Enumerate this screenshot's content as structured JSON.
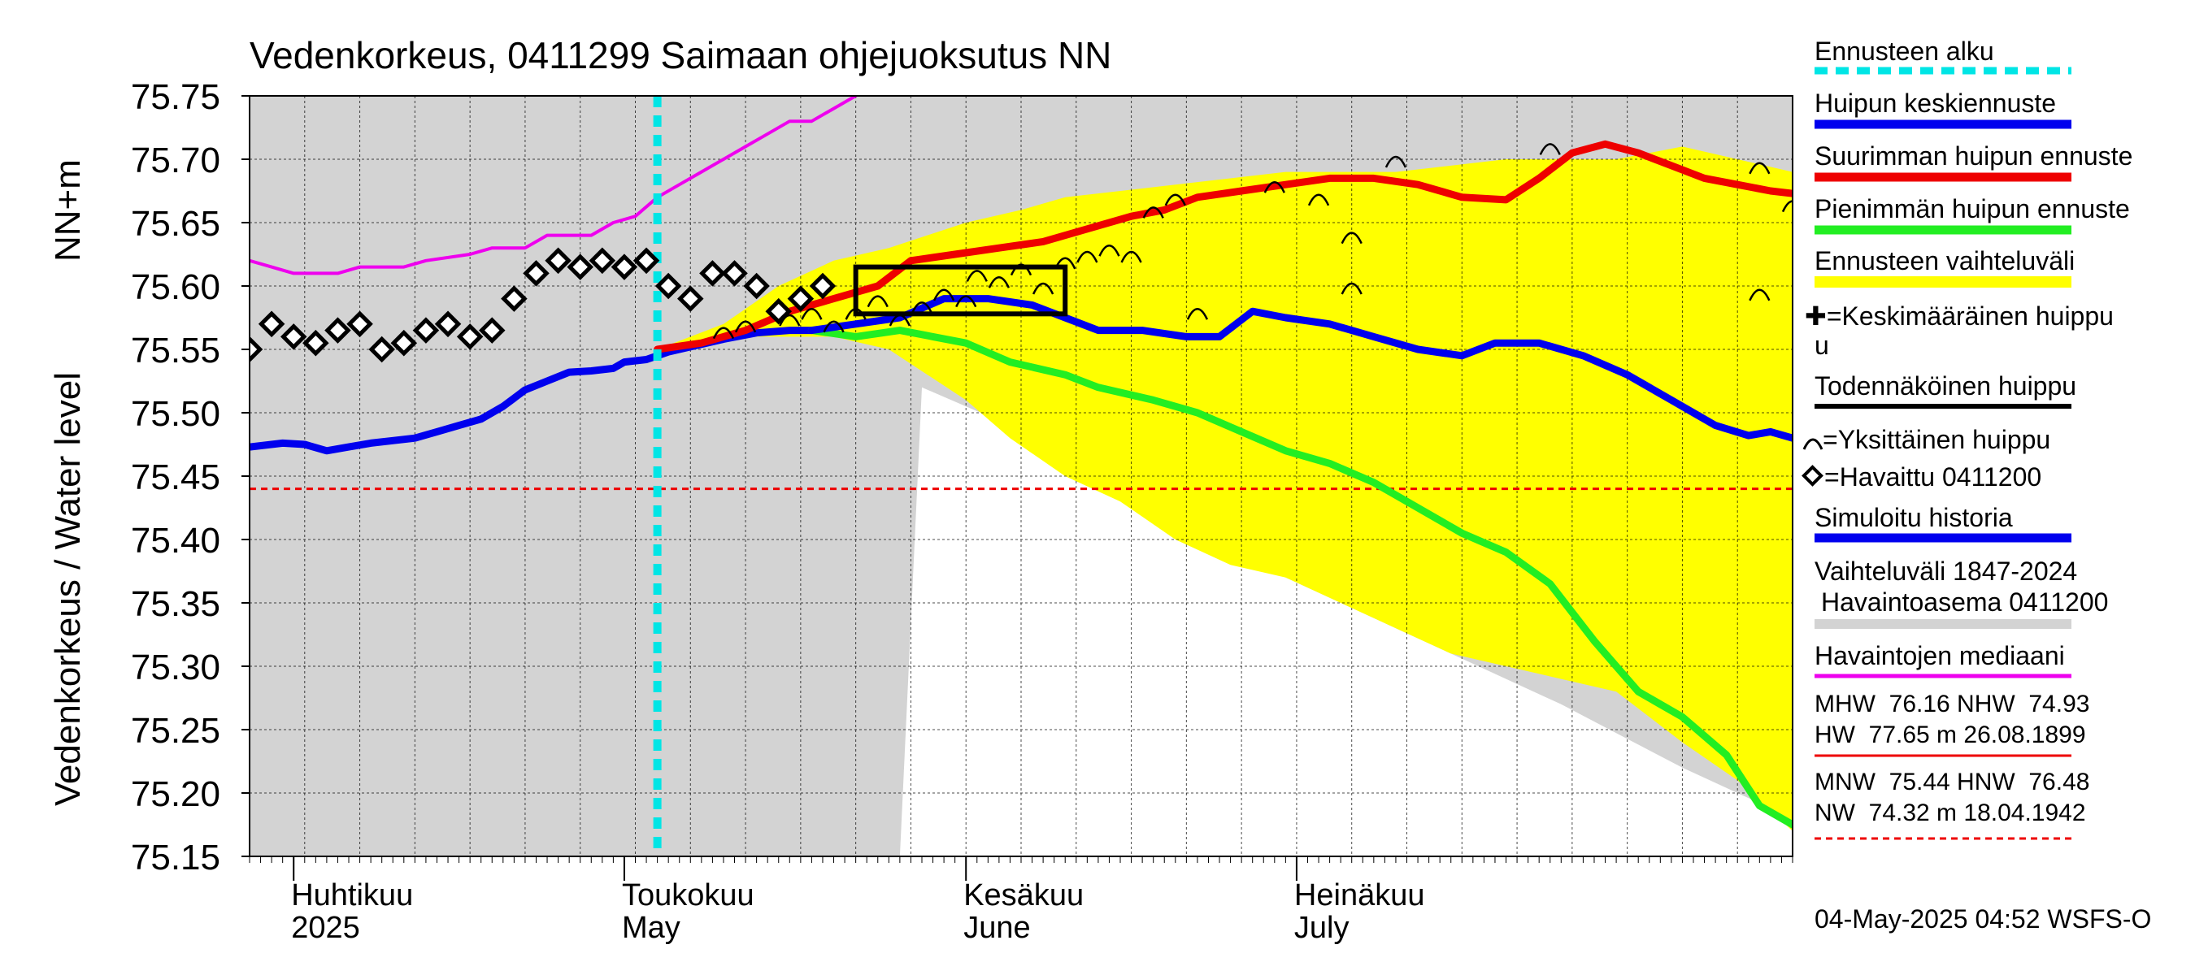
{
  "chart_data": {
    "type": "line",
    "title": "Vedenkorkeus, 0411299 Saimaan ohjejuoksutus NN",
    "ylabel": "Vedenkorkeus / Water level",
    "yunit": "NN+m",
    "ylim": [
      75.15,
      75.75
    ],
    "yticks": [
      "75.15",
      "75.20",
      "75.25",
      "75.30",
      "75.35",
      "75.40",
      "75.45",
      "75.50",
      "75.55",
      "75.60",
      "75.65",
      "75.70",
      "75.75"
    ],
    "xlim": [
      "2025-03-28",
      "2025-08-15"
    ],
    "month_labels": [
      {
        "date": "2025-04-01",
        "fi": "Huhtikuu",
        "en": "2025"
      },
      {
        "date": "2025-05-01",
        "fi": "Toukokuu",
        "en": "May"
      },
      {
        "date": "2025-06-01",
        "fi": "Kesäkuu",
        "en": "June"
      },
      {
        "date": "2025-07-01",
        "fi": "Heinäkuu",
        "en": "July"
      }
    ],
    "grid": true,
    "forecast_start": "2025-05-04",
    "mnw_level": 75.44,
    "historical_range": {
      "name": "Vaihteluväli 1847-2024 Havaintoasema 0411200",
      "color": "#d3d3d3",
      "lower": [
        [
          "2025-03-28",
          75.15
        ],
        [
          "2025-05-26",
          75.15
        ],
        [
          "2025-05-28",
          75.52
        ],
        [
          "2025-06-05",
          75.49
        ],
        [
          "2025-06-15",
          75.44
        ],
        [
          "2025-06-25",
          75.39
        ],
        [
          "2025-07-05",
          75.35
        ],
        [
          "2025-07-15",
          75.31
        ],
        [
          "2025-07-25",
          75.27
        ],
        [
          "2025-08-05",
          75.22
        ],
        [
          "2025-08-15",
          75.18
        ]
      ],
      "upper": [
        [
          "2025-03-28",
          75.75
        ],
        [
          "2025-08-15",
          75.75
        ]
      ]
    },
    "forecast_range": {
      "name": "Ennusteen vaihteluväli",
      "color": "#ffff00",
      "upper": [
        [
          "2025-05-04",
          75.55
        ],
        [
          "2025-05-10",
          75.57
        ],
        [
          "2025-05-15",
          75.6
        ],
        [
          "2025-05-20",
          75.62
        ],
        [
          "2025-05-25",
          75.63
        ],
        [
          "2025-06-01",
          75.65
        ],
        [
          "2025-06-06",
          75.66
        ],
        [
          "2025-06-10",
          75.67
        ],
        [
          "2025-06-20",
          75.68
        ],
        [
          "2025-06-30",
          75.69
        ],
        [
          "2025-07-10",
          75.69
        ],
        [
          "2025-07-20",
          75.7
        ],
        [
          "2025-07-30",
          75.7
        ],
        [
          "2025-08-05",
          75.71
        ],
        [
          "2025-08-10",
          75.7
        ],
        [
          "2025-08-15",
          75.69
        ]
      ],
      "lower": [
        [
          "2025-05-04",
          75.55
        ],
        [
          "2025-05-10",
          75.56
        ],
        [
          "2025-05-20",
          75.56
        ],
        [
          "2025-05-25",
          75.55
        ],
        [
          "2025-06-01",
          75.51
        ],
        [
          "2025-06-05",
          75.48
        ],
        [
          "2025-06-10",
          75.45
        ],
        [
          "2025-06-15",
          75.43
        ],
        [
          "2025-06-20",
          75.4
        ],
        [
          "2025-06-25",
          75.38
        ],
        [
          "2025-06-30",
          75.37
        ],
        [
          "2025-07-05",
          75.35
        ],
        [
          "2025-07-10",
          75.33
        ],
        [
          "2025-07-15",
          75.31
        ],
        [
          "2025-07-20",
          75.3
        ],
        [
          "2025-07-25",
          75.29
        ],
        [
          "2025-07-30",
          75.28
        ],
        [
          "2025-08-05",
          75.24
        ],
        [
          "2025-08-10",
          75.21
        ],
        [
          "2025-08-15",
          75.17
        ]
      ]
    },
    "series": [
      {
        "name": "Havaintojen mediaani",
        "color": "#ee00ee",
        "width": 4,
        "points": [
          [
            "2025-03-28",
            75.62
          ],
          [
            "2025-03-30",
            75.615
          ],
          [
            "2025-04-01",
            75.61
          ],
          [
            "2025-04-05",
            75.61
          ],
          [
            "2025-04-07",
            75.615
          ],
          [
            "2025-04-11",
            75.615
          ],
          [
            "2025-04-13",
            75.62
          ],
          [
            "2025-04-17",
            75.625
          ],
          [
            "2025-04-19",
            75.63
          ],
          [
            "2025-04-22",
            75.63
          ],
          [
            "2025-04-24",
            75.64
          ],
          [
            "2025-04-28",
            75.64
          ],
          [
            "2025-04-30",
            75.65
          ],
          [
            "2025-05-02",
            75.655
          ],
          [
            "2025-05-04",
            75.67
          ],
          [
            "2025-05-06",
            75.68
          ],
          [
            "2025-05-08",
            75.69
          ],
          [
            "2025-05-10",
            75.7
          ],
          [
            "2025-05-12",
            75.71
          ],
          [
            "2025-05-14",
            75.72
          ],
          [
            "2025-05-16",
            75.73
          ],
          [
            "2025-05-18",
            75.73
          ],
          [
            "2025-05-20",
            75.74
          ],
          [
            "2025-05-22",
            75.75
          ]
        ]
      },
      {
        "name": "Simuloitu historia",
        "color": "#0000ee",
        "width": 9,
        "points": [
          [
            "2025-03-28",
            75.473
          ],
          [
            "2025-03-31",
            75.476
          ],
          [
            "2025-04-02",
            75.475
          ],
          [
            "2025-04-04",
            75.47
          ],
          [
            "2025-04-06",
            75.473
          ],
          [
            "2025-04-08",
            75.476
          ],
          [
            "2025-04-10",
            75.478
          ],
          [
            "2025-04-12",
            75.48
          ],
          [
            "2025-04-14",
            75.485
          ],
          [
            "2025-04-16",
            75.49
          ],
          [
            "2025-04-18",
            75.495
          ],
          [
            "2025-04-20",
            75.505
          ],
          [
            "2025-04-22",
            75.518
          ],
          [
            "2025-04-24",
            75.525
          ],
          [
            "2025-04-26",
            75.532
          ],
          [
            "2025-04-28",
            75.533
          ],
          [
            "2025-04-30",
            75.535
          ],
          [
            "2025-05-01",
            75.54
          ],
          [
            "2025-05-03",
            75.542
          ],
          [
            "2025-05-05",
            75.548
          ],
          [
            "2025-05-07",
            75.552
          ],
          [
            "2025-05-10",
            75.558
          ],
          [
            "2025-05-13",
            75.563
          ],
          [
            "2025-05-16",
            75.565
          ],
          [
            "2025-05-18",
            75.565
          ]
        ]
      },
      {
        "name": "Pienimmän huipun ennuste",
        "color": "#22ee22",
        "width": 9,
        "points": [
          [
            "2025-05-18",
            75.565
          ],
          [
            "2025-05-22",
            75.56
          ],
          [
            "2025-05-26",
            75.565
          ],
          [
            "2025-05-29",
            75.56
          ],
          [
            "2025-06-01",
            75.555
          ],
          [
            "2025-06-05",
            75.54
          ],
          [
            "2025-06-10",
            75.53
          ],
          [
            "2025-06-13",
            75.52
          ],
          [
            "2025-06-18",
            75.51
          ],
          [
            "2025-06-22",
            75.5
          ],
          [
            "2025-06-26",
            75.485
          ],
          [
            "2025-06-30",
            75.47
          ],
          [
            "2025-07-04",
            75.46
          ],
          [
            "2025-07-08",
            75.445
          ],
          [
            "2025-07-12",
            75.425
          ],
          [
            "2025-07-16",
            75.405
          ],
          [
            "2025-07-20",
            75.39
          ],
          [
            "2025-07-24",
            75.365
          ],
          [
            "2025-07-28",
            75.32
          ],
          [
            "2025-08-01",
            75.28
          ],
          [
            "2025-08-05",
            75.26
          ],
          [
            "2025-08-09",
            75.23
          ],
          [
            "2025-08-12",
            75.19
          ],
          [
            "2025-08-15",
            75.175
          ]
        ]
      },
      {
        "name": "Suurimman huipun ennuste",
        "color": "#ee0000",
        "width": 9,
        "points": [
          [
            "2025-05-04",
            75.55
          ],
          [
            "2025-05-08",
            75.555
          ],
          [
            "2025-05-12",
            75.565
          ],
          [
            "2025-05-16",
            75.58
          ],
          [
            "2025-05-20",
            75.59
          ],
          [
            "2025-05-24",
            75.6
          ],
          [
            "2025-05-27",
            75.62
          ],
          [
            "2025-05-31",
            75.625
          ],
          [
            "2025-06-04",
            75.63
          ],
          [
            "2025-06-08",
            75.635
          ],
          [
            "2025-06-12",
            75.645
          ],
          [
            "2025-06-16",
            75.655
          ],
          [
            "2025-06-19",
            75.66
          ],
          [
            "2025-06-22",
            75.67
          ],
          [
            "2025-06-26",
            75.675
          ],
          [
            "2025-06-30",
            75.68
          ],
          [
            "2025-07-04",
            75.685
          ],
          [
            "2025-07-08",
            75.685
          ],
          [
            "2025-07-12",
            75.68
          ],
          [
            "2025-07-16",
            75.67
          ],
          [
            "2025-07-20",
            75.668
          ],
          [
            "2025-07-23",
            75.685
          ],
          [
            "2025-07-26",
            75.705
          ],
          [
            "2025-07-29",
            75.712
          ],
          [
            "2025-08-01",
            75.705
          ],
          [
            "2025-08-04",
            75.695
          ],
          [
            "2025-08-07",
            75.685
          ],
          [
            "2025-08-10",
            75.68
          ],
          [
            "2025-08-13",
            75.675
          ],
          [
            "2025-08-15",
            75.673
          ]
        ]
      },
      {
        "name": "Huipun keskiennuste",
        "color": "#0000ee",
        "width": 9,
        "points": [
          [
            "2025-05-18",
            75.565
          ],
          [
            "2025-05-22",
            75.57
          ],
          [
            "2025-05-26",
            75.575
          ],
          [
            "2025-05-30",
            75.59
          ],
          [
            "2025-06-03",
            75.59
          ],
          [
            "2025-06-07",
            75.585
          ],
          [
            "2025-06-10",
            75.575
          ],
          [
            "2025-06-13",
            75.565
          ],
          [
            "2025-06-17",
            75.565
          ],
          [
            "2025-06-21",
            75.56
          ],
          [
            "2025-06-24",
            75.56
          ],
          [
            "2025-06-27",
            75.58
          ],
          [
            "2025-06-30",
            75.575
          ],
          [
            "2025-07-04",
            75.57
          ],
          [
            "2025-07-08",
            75.56
          ],
          [
            "2025-07-12",
            75.55
          ],
          [
            "2025-07-16",
            75.545
          ],
          [
            "2025-07-19",
            75.555
          ],
          [
            "2025-07-23",
            75.555
          ],
          [
            "2025-07-27",
            75.545
          ],
          [
            "2025-07-31",
            75.53
          ],
          [
            "2025-08-04",
            75.51
          ],
          [
            "2025-08-08",
            75.49
          ],
          [
            "2025-08-11",
            75.482
          ],
          [
            "2025-08-13",
            75.485
          ],
          [
            "2025-08-15",
            75.48
          ]
        ]
      }
    ],
    "observed": {
      "name": "Havaittu 0411200",
      "points": [
        [
          "2025-03-28",
          75.55
        ],
        [
          "2025-03-30",
          75.57
        ],
        [
          "2025-04-01",
          75.56
        ],
        [
          "2025-04-03",
          75.555
        ],
        [
          "2025-04-05",
          75.565
        ],
        [
          "2025-04-07",
          75.57
        ],
        [
          "2025-04-09",
          75.55
        ],
        [
          "2025-04-11",
          75.555
        ],
        [
          "2025-04-13",
          75.565
        ],
        [
          "2025-04-15",
          75.57
        ],
        [
          "2025-04-17",
          75.56
        ],
        [
          "2025-04-19",
          75.565
        ],
        [
          "2025-04-21",
          75.59
        ],
        [
          "2025-04-23",
          75.61
        ],
        [
          "2025-04-25",
          75.62
        ],
        [
          "2025-04-27",
          75.615
        ],
        [
          "2025-04-29",
          75.62
        ],
        [
          "2025-05-01",
          75.615
        ],
        [
          "2025-05-03",
          75.62
        ],
        [
          "2025-05-05",
          75.6
        ],
        [
          "2025-05-07",
          75.59
        ],
        [
          "2025-05-09",
          75.61
        ],
        [
          "2025-05-11",
          75.61
        ],
        [
          "2025-05-13",
          75.6
        ],
        [
          "2025-05-15",
          75.58
        ],
        [
          "2025-05-17",
          75.59
        ],
        [
          "2025-05-19",
          75.6
        ]
      ]
    },
    "individual_peaks": {
      "name": "Yksittäinen huippu",
      "points": [
        [
          "2025-05-10",
          75.565
        ],
        [
          "2025-05-12",
          75.57
        ],
        [
          "2025-05-16",
          75.575
        ],
        [
          "2025-05-18",
          75.58
        ],
        [
          "2025-05-20",
          75.57
        ],
        [
          "2025-05-22",
          75.58
        ],
        [
          "2025-05-24",
          75.59
        ],
        [
          "2025-05-26",
          75.575
        ],
        [
          "2025-05-28",
          75.585
        ],
        [
          "2025-05-30",
          75.595
        ],
        [
          "2025-06-01",
          75.59
        ],
        [
          "2025-06-02",
          75.61
        ],
        [
          "2025-06-04",
          75.605
        ],
        [
          "2025-06-06",
          75.615
        ],
        [
          "2025-06-08",
          75.6
        ],
        [
          "2025-06-10",
          75.62
        ],
        [
          "2025-06-12",
          75.625
        ],
        [
          "2025-06-14",
          75.63
        ],
        [
          "2025-06-16",
          75.625
        ],
        [
          "2025-06-18",
          75.66
        ],
        [
          "2025-06-20",
          75.67
        ],
        [
          "2025-06-22",
          75.58
        ],
        [
          "2025-06-29",
          75.68
        ],
        [
          "2025-07-03",
          75.67
        ],
        [
          "2025-07-06",
          75.64
        ],
        [
          "2025-07-06",
          75.6
        ],
        [
          "2025-07-10",
          75.7
        ],
        [
          "2025-07-24",
          75.71
        ],
        [
          "2025-08-12",
          75.695
        ],
        [
          "2025-08-12",
          75.595
        ],
        [
          "2025-08-15",
          75.665
        ]
      ]
    },
    "probable_peak_box": {
      "x": [
        "2025-05-22",
        "2025-06-10"
      ],
      "y": [
        75.578,
        75.615
      ]
    },
    "legend": {
      "placement": "right",
      "items": [
        "Ennusteen alku",
        "Huipun keskiennuste",
        "Suurimman huipun ennuste",
        "Pienimmän huipun ennuste",
        "Ennusteen vaihteluväli",
        "✚=Keskimääräinen huippu",
        "Todennäköinen huippu",
        "=Yksittäinen huippu",
        "=Havaittu 0411200",
        "Simuloitu historia",
        "Vaihteluväli 1847-2024",
        "Havaintoasema 0411200",
        "Havaintojen mediaani"
      ],
      "colors": [
        "#00e5e5",
        "#0000ee",
        "#ee0000",
        "#22ee22",
        "#ffff00",
        "#000000",
        "#000000",
        "#000000",
        "#000000",
        "#0000ee",
        "#d3d3d3",
        "#d3d3d3",
        "#ee00ee"
      ]
    },
    "stats": [
      "MHW  76.16 NHW  74.93",
      "HW  77.65 m 26.08.1899",
      "MNW  75.44 HNW  76.48",
      "NW  74.32 m 18.04.1942"
    ],
    "footer": "04-May-2025 04:52 WSFS-O"
  }
}
